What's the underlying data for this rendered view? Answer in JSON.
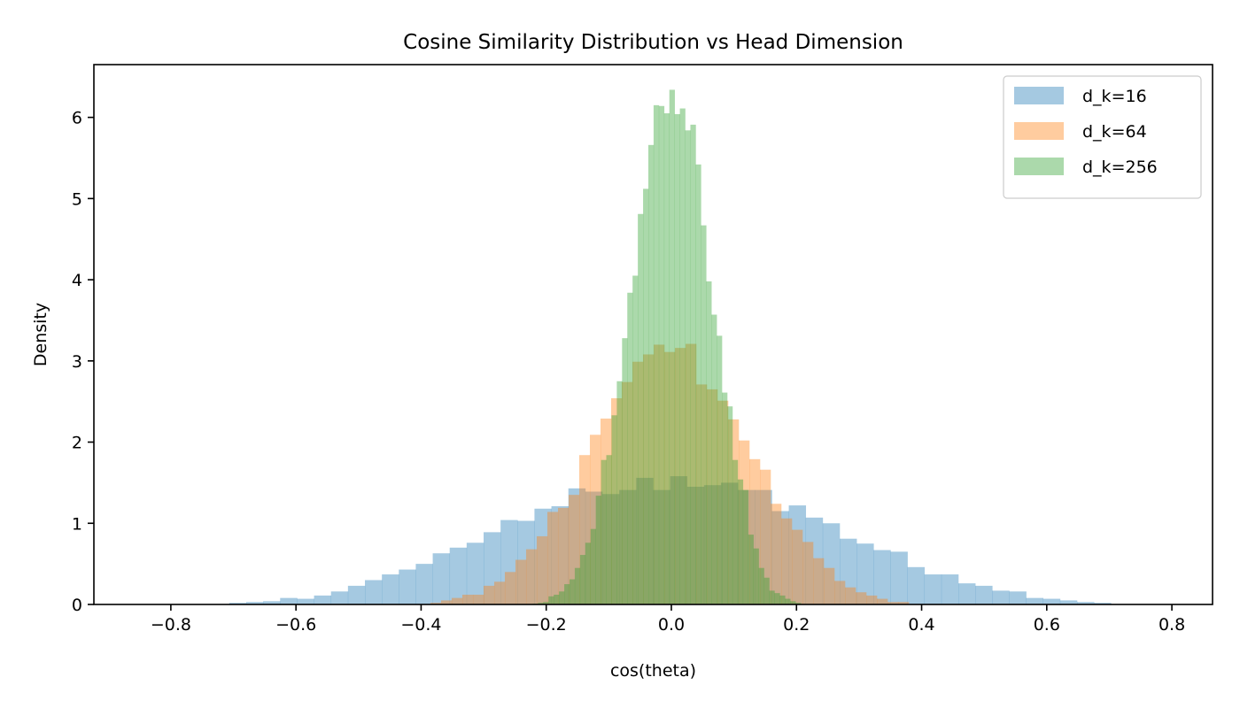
{
  "chart_data": {
    "type": "histogram",
    "title": "Cosine Similarity Distribution vs Head Dimension",
    "xlabel": "cos(theta)",
    "ylabel": "Density",
    "xlim": [
      -0.923,
      0.865
    ],
    "ylim": [
      0,
      6.65
    ],
    "xticks": [
      -0.8,
      -0.6,
      -0.4,
      -0.2,
      0.0,
      0.2,
      0.4,
      0.6,
      0.8
    ],
    "xtick_labels": [
      "−0.8",
      "−0.6",
      "−0.4",
      "−0.2",
      "0.0",
      "0.2",
      "0.4",
      "0.6",
      "0.8"
    ],
    "yticks": [
      0,
      1,
      2,
      3,
      4,
      5,
      6
    ],
    "ytick_labels": [
      "0",
      "1",
      "2",
      "3",
      "4",
      "5",
      "6"
    ],
    "grid": false,
    "legend_position": "top-right",
    "alpha": 0.4,
    "series": [
      {
        "name": "d_k=16",
        "color": "#1f77b4",
        "bin_start": -0.7066,
        "bin_width": 0.0271,
        "values": [
          0.02,
          0.03,
          0.04,
          0.08,
          0.07,
          0.11,
          0.16,
          0.23,
          0.3,
          0.37,
          0.43,
          0.5,
          0.63,
          0.7,
          0.76,
          0.89,
          1.04,
          1.03,
          1.18,
          1.21,
          1.43,
          1.39,
          1.36,
          1.41,
          1.56,
          1.41,
          1.58,
          1.45,
          1.47,
          1.5,
          1.41,
          1.41,
          1.15,
          1.22,
          1.07,
          1.0,
          0.81,
          0.75,
          0.67,
          0.65,
          0.46,
          0.37,
          0.37,
          0.26,
          0.23,
          0.17,
          0.16,
          0.08,
          0.07,
          0.05,
          0.03,
          0.02
        ]
      },
      {
        "name": "d_k=64",
        "color": "#ff7f0e",
        "bin_start": -0.3851,
        "bin_width": 0.01699,
        "values": [
          0.02,
          0.05,
          0.08,
          0.12,
          0.12,
          0.23,
          0.28,
          0.4,
          0.55,
          0.68,
          0.84,
          1.14,
          1.19,
          1.35,
          1.84,
          2.09,
          2.29,
          2.54,
          2.74,
          2.99,
          3.08,
          3.2,
          3.11,
          3.16,
          3.21,
          2.71,
          2.65,
          2.51,
          2.28,
          2.02,
          1.79,
          1.66,
          1.24,
          1.06,
          0.92,
          0.77,
          0.57,
          0.45,
          0.29,
          0.21,
          0.15,
          0.11,
          0.07,
          0.03,
          0.03
        ]
      },
      {
        "name": "d_k=256",
        "color": "#2ca02c",
        "bin_start": -0.2216,
        "bin_width": 0.0084,
        "values": [
          0.01,
          0.02,
          0.03,
          0.1,
          0.12,
          0.16,
          0.25,
          0.31,
          0.45,
          0.61,
          0.76,
          0.93,
          1.34,
          1.78,
          1.84,
          2.33,
          2.75,
          3.28,
          3.84,
          4.05,
          4.81,
          5.12,
          5.66,
          6.15,
          6.14,
          6.05,
          6.34,
          6.04,
          6.11,
          5.84,
          5.91,
          5.42,
          4.67,
          3.98,
          3.57,
          3.31,
          2.61,
          2.44,
          1.78,
          1.54,
          1.41,
          0.86,
          0.69,
          0.45,
          0.33,
          0.17,
          0.14,
          0.11,
          0.07,
          0.04,
          0.02
        ]
      }
    ]
  }
}
